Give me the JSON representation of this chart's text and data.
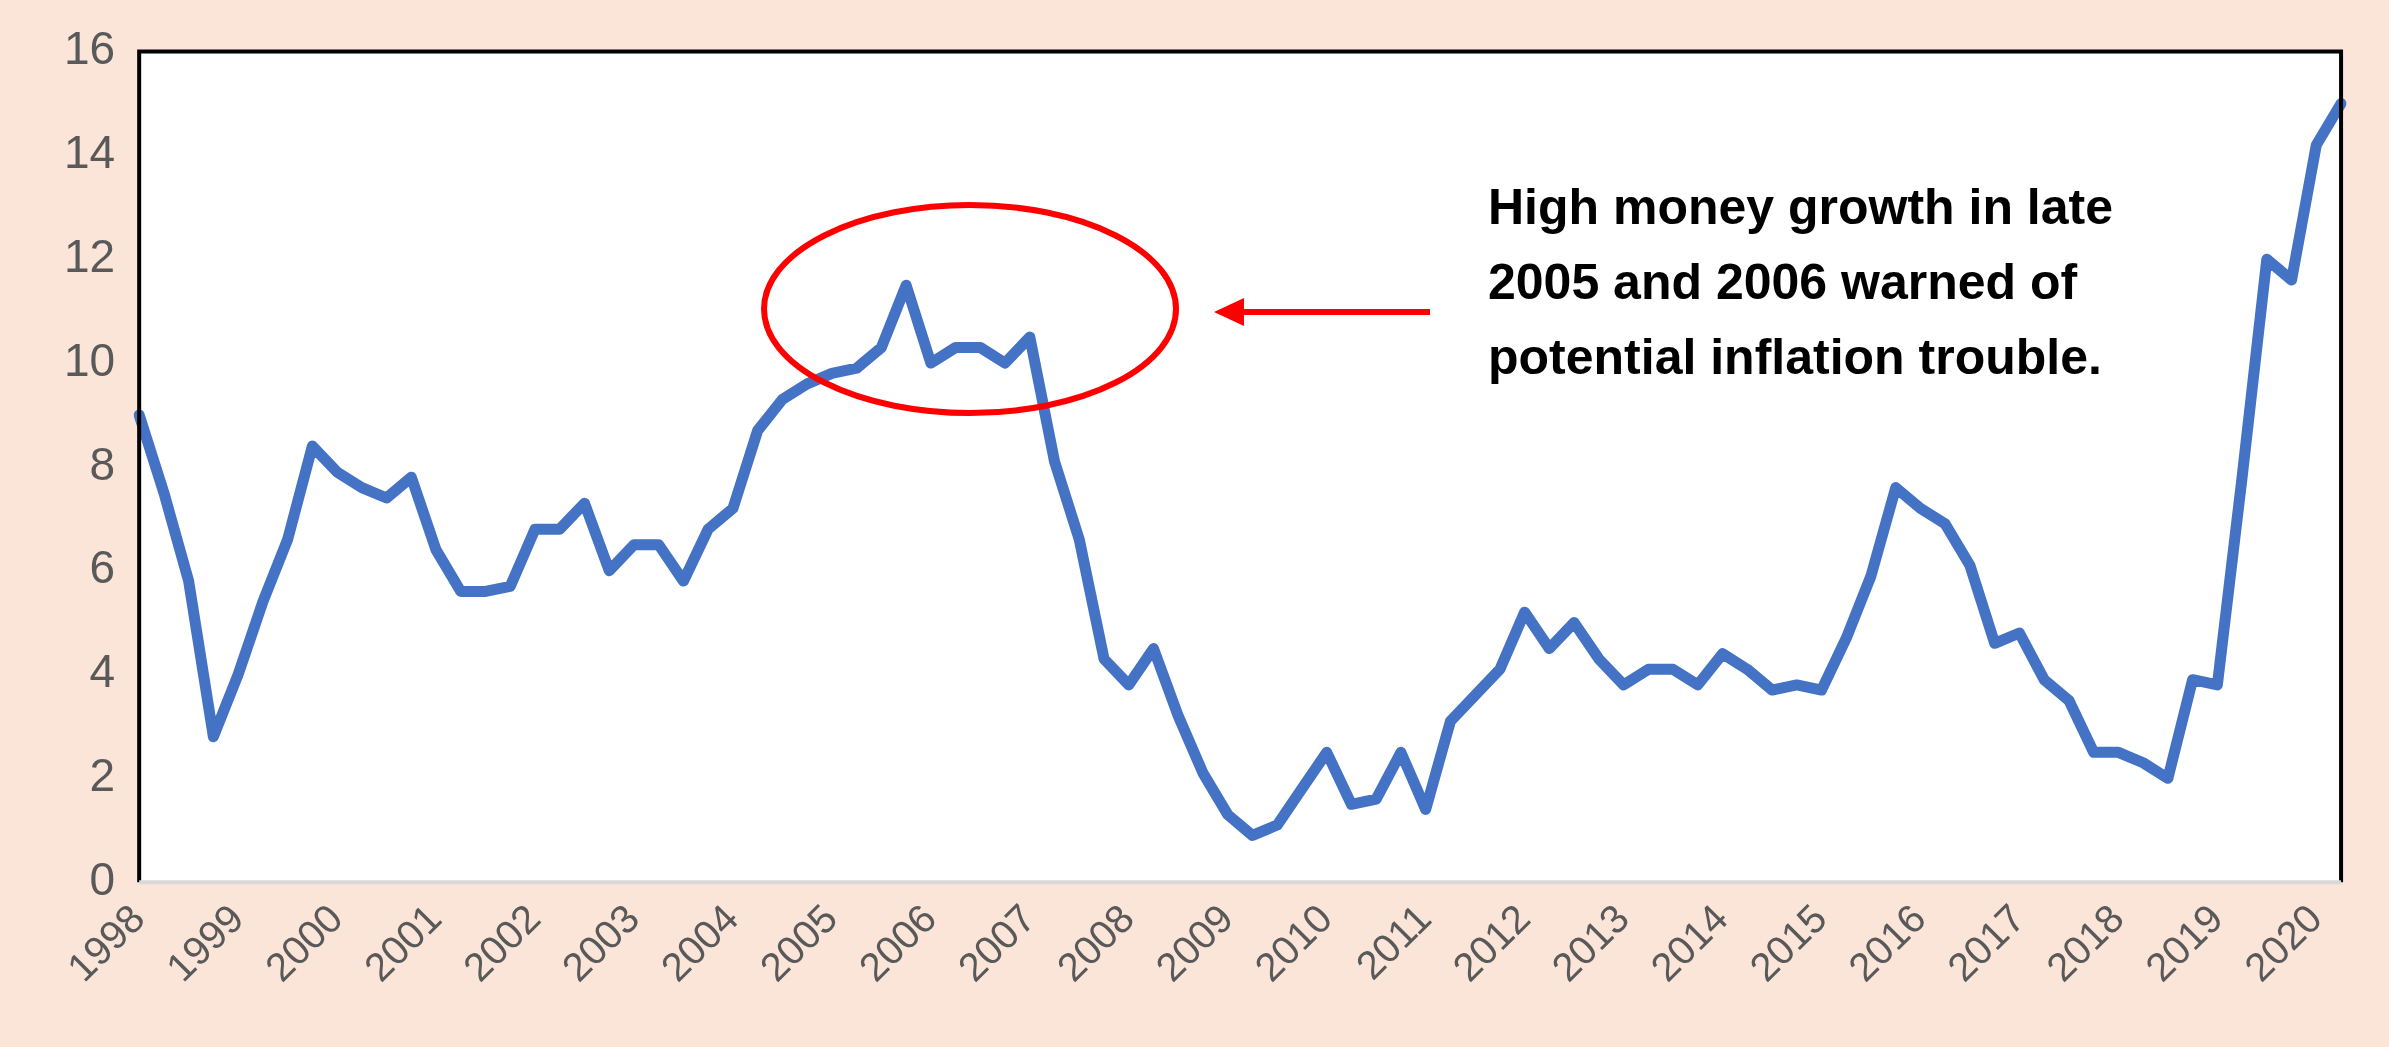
{
  "chart_data": {
    "type": "line",
    "categories": [
      "1998",
      null,
      null,
      null,
      "1999",
      null,
      null,
      null,
      "2000",
      null,
      null,
      null,
      "2001",
      null,
      null,
      null,
      "2002",
      null,
      null,
      null,
      "2003",
      null,
      null,
      null,
      "2004",
      null,
      null,
      null,
      "2005",
      null,
      null,
      null,
      "2006",
      null,
      null,
      null,
      "2007",
      null,
      null,
      null,
      "2008",
      null,
      null,
      null,
      "2009",
      null,
      null,
      null,
      "2010",
      null,
      null,
      null,
      "2011",
      null,
      null,
      null,
      "2012",
      null,
      null,
      null,
      "2013",
      null,
      null,
      null,
      "2014",
      null,
      null,
      null,
      "2015",
      null,
      null,
      null,
      "2016",
      null,
      null,
      null,
      "2017",
      null,
      null,
      null,
      "2018",
      null,
      null,
      null,
      "2019",
      null,
      null,
      null,
      "2020",
      null
    ],
    "series": [
      {
        "color": "#4472c4",
        "values": [
          9.0,
          7.5,
          5.8,
          2.8,
          4.0,
          5.4,
          6.6,
          8.4,
          7.9,
          7.6,
          7.4,
          7.8,
          6.4,
          5.6,
          5.6,
          5.7,
          6.8,
          6.8,
          7.3,
          6.0,
          6.5,
          6.5,
          5.8,
          6.8,
          7.2,
          8.7,
          9.3,
          9.6,
          9.8,
          9.9,
          10.3,
          11.5,
          10.0,
          10.3,
          10.3,
          10.0,
          10.5,
          8.1,
          6.6,
          4.3,
          3.8,
          4.5,
          3.2,
          2.1,
          1.3,
          0.9,
          1.1,
          1.8,
          2.5,
          1.5,
          1.6,
          2.5,
          1.4,
          3.1,
          3.6,
          4.1,
          5.2,
          4.5,
          5.0,
          4.3,
          3.8,
          4.1,
          4.1,
          3.8,
          4.4,
          4.1,
          3.7,
          3.8,
          3.7,
          4.7,
          5.9,
          7.6,
          7.2,
          6.9,
          6.1,
          4.6,
          4.8,
          3.9,
          3.5,
          2.5,
          2.5,
          2.3,
          2.0,
          3.9,
          3.8,
          7.8,
          12.0,
          11.6,
          14.2,
          15.0
        ]
      }
    ],
    "ylim": [
      0,
      16
    ],
    "yticks": [
      0,
      2,
      4,
      6,
      8,
      10,
      12,
      14,
      16
    ],
    "grid": false,
    "legend": false,
    "marker": "none",
    "line_style": "solid",
    "annotations": [
      "High money growth in late 2005 and 2006 warned of potential inflation trouble."
    ]
  }
}
